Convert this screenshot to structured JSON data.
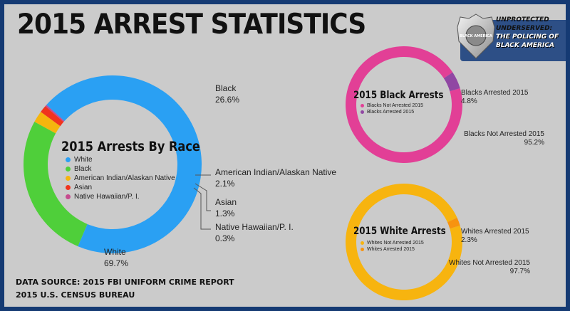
{
  "title": "2015 ARREST STATISTICS",
  "source_line1": "DATA SOURCE: 2015 FBI UNIFORM CRIME REPORT",
  "source_line2": "2015 U.S. CENSUS BUREAU",
  "badge": {
    "shield_text": "BLACK AMERICA",
    "line1": "UNPROTECTED",
    "line2": "UNDERSERVED:",
    "line3": "THE POLICING OF",
    "line4": "BLACK AMERICA"
  },
  "colors": {
    "white": "#2aa0f3",
    "black": "#4fcf3a",
    "aian": "#f5b50e",
    "asian": "#f0341e",
    "nhpi": "#c64b8f",
    "magenta": "#e23f96",
    "purple": "#9047a3",
    "yellow": "#f7b40f",
    "orange": "#f7930f"
  },
  "chart_data": [
    {
      "type": "pie",
      "title": "2015 Arrests By Race",
      "categories": [
        "White",
        "Black",
        "American Indian/Alaskan Native",
        "Asian",
        "Native Hawaiian/P. I."
      ],
      "values": [
        69.7,
        26.6,
        2.1,
        1.3,
        0.3
      ],
      "value_labels": [
        "69.7%",
        "26.6%",
        "2.1%",
        "1.3%",
        "0.3%"
      ],
      "colors": [
        "#2aa0f3",
        "#4fcf3a",
        "#f5b50e",
        "#f0341e",
        "#c64b8f"
      ],
      "legend": [
        "White",
        "Black",
        "American Indian/Alaskan Native",
        "Asian",
        "Native Hawaiian/P. I."
      ]
    },
    {
      "type": "pie",
      "title": "2015 Black Arrests",
      "categories": [
        "Blacks Not Arrested 2015",
        "Blacks Arrested 2015"
      ],
      "values": [
        95.2,
        4.8
      ],
      "value_labels": [
        "95.2%",
        "4.8%"
      ],
      "colors": [
        "#e23f96",
        "#9047a3"
      ],
      "legend": [
        "Blacks Not Arrested 2015",
        "Blacks Arrested 2015"
      ]
    },
    {
      "type": "pie",
      "title": "2015 White Arrests",
      "categories": [
        "Whites Not Arrested 2015",
        "Whites Arrested 2015"
      ],
      "values": [
        97.7,
        2.3
      ],
      "value_labels": [
        "97.7%",
        "2.3%"
      ],
      "colors": [
        "#f7b40f",
        "#f7930f"
      ],
      "legend": [
        "Whites Not Arrested 2015",
        "Whites Arrested 2015"
      ]
    }
  ]
}
